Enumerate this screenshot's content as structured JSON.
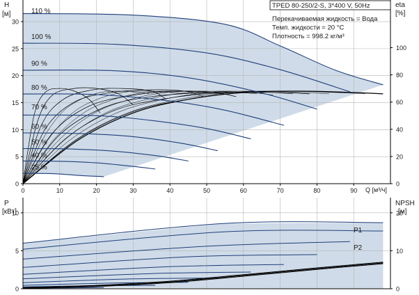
{
  "chart_data": [
    {
      "type": "line",
      "title": "TPED 80-250/2-S, 3*400 V, 50Hz",
      "info": [
        "Перекачиваемая жидкость = Вода",
        "Темп. жидкости = 20 °C",
        "Плотность = 998.2 кг/м³"
      ],
      "xlabel": "Q [м³/ч]",
      "ylabel": [
        "H",
        "[м]"
      ],
      "y2label": [
        "eta",
        "[%]"
      ],
      "xlim": [
        0,
        100
      ],
      "ylim": [
        0,
        34
      ],
      "y2lim": [
        0,
        135
      ],
      "x_ticks": [
        0,
        10,
        20,
        30,
        40,
        50,
        60,
        70,
        80,
        90
      ],
      "y_ticks": [
        0,
        5,
        10,
        15,
        20,
        25,
        30
      ],
      "y2_ticks": [
        0,
        20,
        40,
        60,
        80,
        100
      ],
      "grid": true,
      "colors": {
        "area": "#cfdbe8",
        "curve": "#1f3f7a",
        "eta": "#000000",
        "grid": "#b5b5b5"
      },
      "series": [
        {
          "name": "110 %",
          "x": [
            0,
            30,
            55,
            70,
            85,
            98
          ],
          "y": [
            31.5,
            31.2,
            29.5,
            25.5,
            21,
            18.3
          ]
        },
        {
          "name": "100 %",
          "x": [
            0,
            25,
            50,
            70,
            89
          ],
          "y": [
            26,
            25.8,
            24.2,
            21.1,
            17
          ]
        },
        {
          "name": "90 %",
          "x": [
            0,
            25,
            45,
            65,
            80
          ],
          "y": [
            21,
            20.9,
            19.6,
            16.8,
            13.8
          ]
        },
        {
          "name": "80 %",
          "x": [
            0,
            20,
            40,
            55,
            71
          ],
          "y": [
            16.6,
            16.5,
            15.3,
            13.6,
            10.8
          ]
        },
        {
          "name": "70 %",
          "x": [
            0,
            20,
            35,
            50,
            62
          ],
          "y": [
            12.7,
            12.6,
            11.7,
            10.2,
            8.3
          ]
        },
        {
          "name": "60 %",
          "x": [
            0,
            15,
            30,
            43,
            53
          ],
          "y": [
            9.4,
            9.3,
            8.7,
            7.5,
            6.1
          ]
        },
        {
          "name": "50 %",
          "x": [
            0,
            12,
            25,
            36,
            45
          ],
          "y": [
            6.5,
            6.45,
            6,
            5.2,
            4.2
          ]
        },
        {
          "name": "40 %",
          "x": [
            0,
            10,
            20,
            30,
            36
          ],
          "y": [
            4.2,
            4.15,
            3.85,
            3.2,
            2.7
          ]
        },
        {
          "name": "25 %",
          "x": [
            0,
            8,
            16,
            22
          ],
          "y": [
            1.9,
            1.85,
            1.5,
            1.3
          ]
        }
      ],
      "eta_curves": [
        {
          "scale": 1.0,
          "x": [
            0,
            15,
            30,
            45,
            60,
            75,
            90,
            98
          ],
          "y": [
            0,
            32,
            52,
            62,
            67,
            68,
            67,
            66
          ]
        },
        {
          "scale": 0.9,
          "x": [
            0,
            15,
            30,
            45,
            60,
            75,
            88
          ],
          "y": [
            0,
            33,
            53,
            62,
            67,
            68,
            67
          ]
        },
        {
          "scale": 0.8,
          "x": [
            0,
            12,
            25,
            40,
            55,
            70,
            78
          ],
          "y": [
            0,
            34,
            54,
            63,
            67,
            67,
            66
          ]
        },
        {
          "scale": 0.7,
          "x": [
            0,
            10,
            22,
            35,
            50,
            62,
            68
          ],
          "y": [
            0,
            36,
            56,
            64,
            67,
            67,
            65
          ]
        },
        {
          "scale": 0.6,
          "x": [
            0,
            8,
            18,
            30,
            42,
            52,
            58
          ],
          "y": [
            0,
            37,
            57,
            65,
            68,
            67,
            64
          ]
        },
        {
          "scale": 0.5,
          "x": [
            0,
            6,
            14,
            24,
            35,
            44,
            49
          ],
          "y": [
            0,
            40,
            60,
            67,
            69,
            68,
            64
          ]
        },
        {
          "scale": 0.4,
          "x": [
            0,
            5,
            11,
            19,
            27,
            35,
            39
          ],
          "y": [
            0,
            43,
            62,
            69,
            70,
            68,
            62
          ]
        },
        {
          "scale": 0.3,
          "x": [
            0,
            4,
            8,
            14,
            20,
            26,
            30
          ],
          "y": [
            0,
            46,
            65,
            70,
            70,
            66,
            58
          ]
        },
        {
          "scale": 0.2,
          "x": [
            0,
            3,
            6,
            10,
            14,
            18,
            21
          ],
          "y": [
            0,
            50,
            67,
            70,
            68,
            62,
            52
          ]
        }
      ]
    },
    {
      "type": "line",
      "xlim": [
        0,
        100
      ],
      "ylabel": [
        "P",
        "[кВт]"
      ],
      "y2label": [
        "NPSH",
        "[м]"
      ],
      "ylim": [
        0,
        12
      ],
      "y2lim": [
        0,
        24
      ],
      "y_ticks": [
        0,
        5,
        10
      ],
      "y2_ticks": [
        0,
        10,
        20
      ],
      "labels": [
        "P1",
        "P2"
      ],
      "colors": {
        "area": "#cfdbe8",
        "curve": "#1f3f7a",
        "npsh": "#000000",
        "grid": "#b5b5b5"
      },
      "series": [
        {
          "name": "P1",
          "x": [
            0,
            55,
            98
          ],
          "y": [
            6.0,
            8.6,
            8.7
          ]
        },
        {
          "name": "P2",
          "x": [
            0,
            55,
            98
          ],
          "y": [
            5.2,
            7.5,
            7.6
          ]
        },
        {
          "x": [
            0,
            50,
            89
          ],
          "y": [
            3.9,
            5.6,
            6.2
          ]
        },
        {
          "x": [
            0,
            45,
            80
          ],
          "y": [
            2.8,
            4.2,
            4.5
          ]
        },
        {
          "x": [
            0,
            40,
            71
          ],
          "y": [
            1.9,
            2.9,
            3.2
          ]
        },
        {
          "x": [
            0,
            35,
            62
          ],
          "y": [
            1.3,
            2.0,
            2.2
          ]
        },
        {
          "x": [
            0,
            30,
            53
          ],
          "y": [
            0.8,
            1.3,
            1.4
          ]
        },
        {
          "x": [
            0,
            25,
            45
          ],
          "y": [
            0.45,
            0.75,
            0.85
          ]
        },
        {
          "x": [
            0,
            20,
            36
          ],
          "y": [
            0.25,
            0.4,
            0.45
          ]
        },
        {
          "x": [
            0,
            12,
            22
          ],
          "y": [
            0.08,
            0.12,
            0.15
          ]
        }
      ],
      "npsh": [
        {
          "x": [
            0,
            20,
            40,
            60,
            80,
            98
          ],
          "y": [
            0.2,
            0.7,
            1.8,
            3.5,
            5.3,
            6.8
          ]
        },
        {
          "x": [
            0,
            20,
            40,
            60,
            80,
            98
          ],
          "y": [
            0.3,
            0.9,
            2.0,
            3.7,
            5.5,
            7.0
          ]
        },
        {
          "x": [
            0,
            20,
            40,
            60,
            80,
            98
          ],
          "y": [
            0.1,
            0.6,
            1.6,
            3.3,
            5.1,
            6.6
          ]
        }
      ]
    }
  ]
}
